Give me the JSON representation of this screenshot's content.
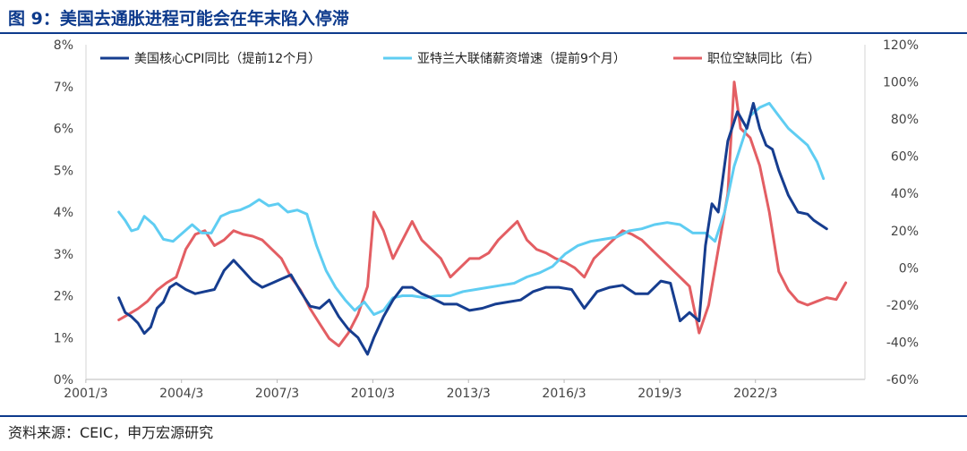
{
  "title": "图 9：美国去通胀进程可能会在年末陷入停滞",
  "source": "资料来源：CEIC，申万宏源研究",
  "colors": {
    "title": "#0d3a8c",
    "cpi": "#163d8f",
    "wage": "#5fcdf2",
    "job": "#e35e63"
  },
  "chart_data": {
    "type": "line",
    "x_ticks": [
      "2001/3",
      "2004/3",
      "2007/3",
      "2010/3",
      "2013/3",
      "2016/3",
      "2019/3",
      "2022/3"
    ],
    "x_range": [
      2001.17,
      2025.6
    ],
    "y_left": {
      "range": [
        0,
        8
      ],
      "ticks": [
        "0%",
        "1%",
        "2%",
        "3%",
        "4%",
        "5%",
        "6%",
        "7%",
        "8%"
      ]
    },
    "y_right": {
      "range": [
        -60,
        120
      ],
      "ticks": [
        "-60%",
        "-40%",
        "-20%",
        "0%",
        "20%",
        "40%",
        "60%",
        "80%",
        "100%",
        "120%"
      ]
    },
    "legend_position": "top",
    "series": [
      {
        "name": "美国核心CPI同比（提前12个月）",
        "axis": "left",
        "color": "#163d8f",
        "x": [
          2002.2,
          2002.4,
          2002.6,
          2002.8,
          2003.0,
          2003.2,
          2003.4,
          2003.6,
          2003.8,
          2004.0,
          2004.3,
          2004.6,
          2004.9,
          2005.2,
          2005.5,
          2005.8,
          2006.1,
          2006.4,
          2006.7,
          2007.0,
          2007.3,
          2007.6,
          2007.9,
          2008.2,
          2008.5,
          2008.8,
          2009.1,
          2009.4,
          2009.7,
          2010.0,
          2010.2,
          2010.5,
          2010.8,
          2011.1,
          2011.4,
          2011.7,
          2012.0,
          2012.4,
          2012.8,
          2013.2,
          2013.6,
          2014.0,
          2014.4,
          2014.8,
          2015.2,
          2015.6,
          2016.0,
          2016.4,
          2016.8,
          2017.2,
          2017.6,
          2018.0,
          2018.4,
          2018.8,
          2019.2,
          2019.5,
          2019.8,
          2020.1,
          2020.4,
          2020.6,
          2020.8,
          2021.0,
          2021.3,
          2021.6,
          2021.9,
          2022.1,
          2022.3,
          2022.5,
          2022.7,
          2022.9,
          2023.2,
          2023.5,
          2023.8,
          2024.0,
          2024.2,
          2024.4
        ],
        "y": [
          1.95,
          1.6,
          1.5,
          1.35,
          1.1,
          1.25,
          1.7,
          1.85,
          2.2,
          2.3,
          2.15,
          2.05,
          2.1,
          2.15,
          2.6,
          2.85,
          2.6,
          2.35,
          2.2,
          2.3,
          2.4,
          2.5,
          2.1,
          1.75,
          1.7,
          1.9,
          1.5,
          1.2,
          1.0,
          0.6,
          1.0,
          1.5,
          1.9,
          2.2,
          2.2,
          2.05,
          1.95,
          1.8,
          1.8,
          1.65,
          1.7,
          1.8,
          1.85,
          1.9,
          2.1,
          2.2,
          2.2,
          2.15,
          1.7,
          2.1,
          2.2,
          2.25,
          2.05,
          2.05,
          2.35,
          2.3,
          1.4,
          1.6,
          1.4,
          3.2,
          4.2,
          4.0,
          5.7,
          6.4,
          6.0,
          6.6,
          6.0,
          5.6,
          5.5,
          5.0,
          4.4,
          4.0,
          3.95,
          3.8,
          3.7,
          3.6
        ]
      },
      {
        "name": "亚特兰大联储薪资增速（提前9个月）",
        "axis": "left",
        "color": "#5fcdf2",
        "x": [
          2002.2,
          2002.4,
          2002.6,
          2002.8,
          2003.0,
          2003.3,
          2003.6,
          2003.9,
          2004.2,
          2004.5,
          2004.8,
          2005.1,
          2005.4,
          2005.7,
          2006.0,
          2006.3,
          2006.6,
          2006.9,
          2007.2,
          2007.5,
          2007.8,
          2008.1,
          2008.4,
          2008.7,
          2009.0,
          2009.3,
          2009.6,
          2009.9,
          2010.2,
          2010.5,
          2010.8,
          2011.1,
          2011.4,
          2011.8,
          2012.2,
          2012.6,
          2013.0,
          2013.4,
          2013.8,
          2014.2,
          2014.6,
          2015.0,
          2015.4,
          2015.8,
          2016.2,
          2016.6,
          2017.0,
          2017.4,
          2017.8,
          2018.2,
          2018.6,
          2019.0,
          2019.4,
          2019.8,
          2020.2,
          2020.6,
          2020.9,
          2021.2,
          2021.5,
          2021.8,
          2022.0,
          2022.3,
          2022.6,
          2022.9,
          2023.2,
          2023.5,
          2023.8,
          2024.1,
          2024.3
        ],
        "y": [
          4.0,
          3.8,
          3.55,
          3.6,
          3.9,
          3.7,
          3.35,
          3.3,
          3.5,
          3.7,
          3.5,
          3.5,
          3.9,
          4.0,
          4.05,
          4.15,
          4.3,
          4.15,
          4.2,
          4.0,
          4.05,
          3.95,
          3.2,
          2.6,
          2.2,
          1.9,
          1.65,
          1.85,
          1.55,
          1.65,
          1.95,
          2.0,
          2.0,
          1.95,
          2.0,
          2.0,
          2.1,
          2.15,
          2.2,
          2.25,
          2.3,
          2.45,
          2.55,
          2.7,
          3.0,
          3.2,
          3.3,
          3.35,
          3.4,
          3.55,
          3.6,
          3.7,
          3.75,
          3.7,
          3.5,
          3.5,
          3.3,
          4.0,
          5.1,
          5.8,
          6.3,
          6.5,
          6.6,
          6.3,
          6.0,
          5.8,
          5.6,
          5.2,
          4.8
        ]
      },
      {
        "name": "职位空缺同比（右）",
        "axis": "right",
        "color": "#e35e63",
        "x": [
          2002.2,
          2002.5,
          2002.8,
          2003.1,
          2003.4,
          2003.7,
          2004.0,
          2004.3,
          2004.6,
          2004.9,
          2005.2,
          2005.5,
          2005.8,
          2006.1,
          2006.4,
          2006.7,
          2007.0,
          2007.3,
          2007.6,
          2007.9,
          2008.2,
          2008.5,
          2008.8,
          2009.1,
          2009.4,
          2009.7,
          2010.0,
          2010.2,
          2010.5,
          2010.8,
          2011.1,
          2011.4,
          2011.7,
          2012.0,
          2012.3,
          2012.6,
          2012.9,
          2013.2,
          2013.5,
          2013.8,
          2014.1,
          2014.4,
          2014.7,
          2015.0,
          2015.3,
          2015.6,
          2015.9,
          2016.2,
          2016.5,
          2016.8,
          2017.1,
          2017.4,
          2017.7,
          2018.0,
          2018.3,
          2018.6,
          2018.9,
          2019.2,
          2019.5,
          2019.8,
          2020.1,
          2020.4,
          2020.7,
          2021.0,
          2021.3,
          2021.5,
          2021.7,
          2022.0,
          2022.3,
          2022.6,
          2022.9,
          2023.2,
          2023.5,
          2023.8,
          2024.1,
          2024.4,
          2024.7,
          2025.0
        ],
        "y": [
          -28,
          -25,
          -22,
          -18,
          -12,
          -8,
          -5,
          10,
          18,
          20,
          12,
          15,
          20,
          18,
          17,
          15,
          10,
          5,
          -5,
          -12,
          -22,
          -30,
          -38,
          -42,
          -35,
          -25,
          -10,
          30,
          20,
          5,
          15,
          25,
          15,
          10,
          5,
          -5,
          0,
          5,
          5,
          8,
          15,
          20,
          25,
          15,
          10,
          8,
          5,
          3,
          0,
          -5,
          5,
          10,
          15,
          20,
          18,
          15,
          10,
          5,
          0,
          -5,
          -10,
          -35,
          -20,
          10,
          40,
          100,
          75,
          70,
          55,
          30,
          -2,
          -12,
          -18,
          -20,
          -18,
          -16,
          -17,
          -8
        ]
      }
    ]
  }
}
